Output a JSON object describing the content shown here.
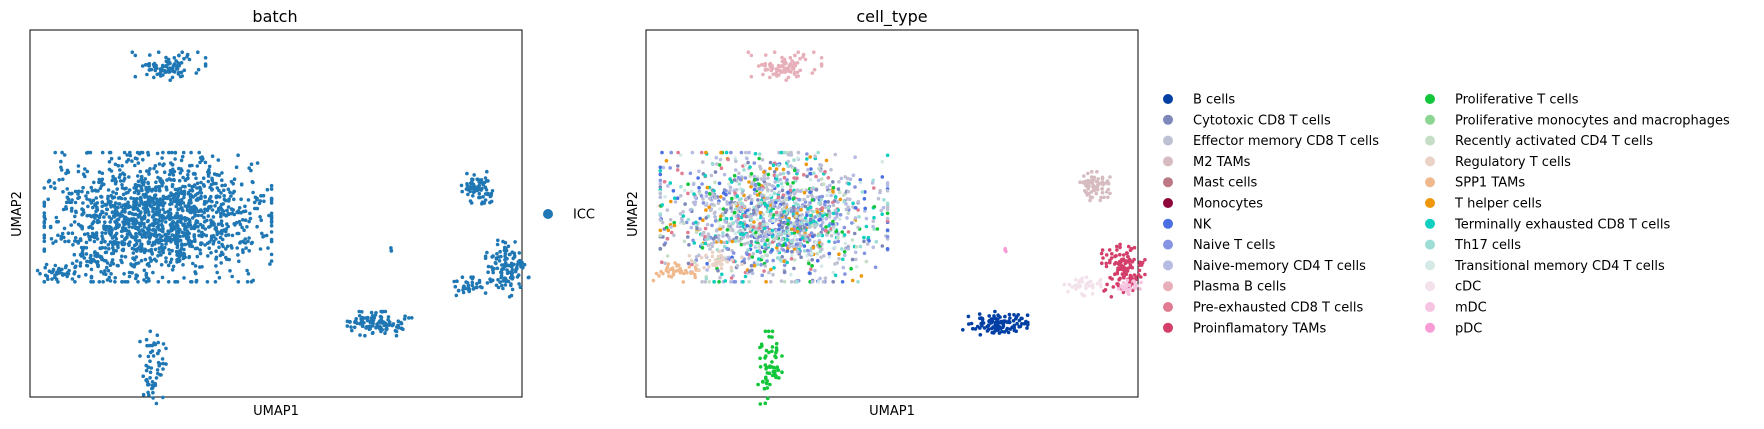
{
  "chart_data": [
    {
      "type": "scatter",
      "title": "batch",
      "xlabel": "UMAP1",
      "ylabel": "UMAP2",
      "ticks": false,
      "grid": false,
      "legend_position": "right",
      "categories": [
        {
          "name": "ICC",
          "color": "#1f77b4"
        }
      ],
      "clusters": [
        {
          "category": "ICC",
          "x": 2.3,
          "y": 9.0,
          "sx": 0.35,
          "sy": 0.18,
          "n": 90
        },
        {
          "category": "ICC",
          "x": 2.1,
          "y": 4.9,
          "sx": 1.05,
          "sy": 0.8,
          "n": 1500
        },
        {
          "category": "ICC",
          "x": 0.2,
          "y": 3.4,
          "sx": 0.25,
          "sy": 0.12,
          "n": 40
        },
        {
          "category": "ICC",
          "x": 0.9,
          "y": 3.7,
          "sx": 0.25,
          "sy": 0.12,
          "n": 35
        },
        {
          "category": "ICC",
          "x": 2.0,
          "y": 0.8,
          "sx": 0.12,
          "sy": 0.45,
          "n": 60
        },
        {
          "category": "ICC",
          "x": 6.6,
          "y": 2.0,
          "sx": 0.3,
          "sy": 0.15,
          "n": 110
        },
        {
          "category": "ICC",
          "x": 6.8,
          "y": 4.0,
          "sx": 0.03,
          "sy": 0.03,
          "n": 3
        },
        {
          "category": "ICC",
          "x": 8.6,
          "y": 5.7,
          "sx": 0.15,
          "sy": 0.2,
          "n": 70
        },
        {
          "category": "ICC",
          "x": 9.2,
          "y": 3.5,
          "sx": 0.2,
          "sy": 0.35,
          "n": 120
        },
        {
          "category": "ICC",
          "x": 8.4,
          "y": 3.0,
          "sx": 0.18,
          "sy": 0.12,
          "n": 35
        }
      ],
      "xlim": [
        -0.5,
        9.5
      ],
      "ylim": [
        0,
        10
      ]
    },
    {
      "type": "scatter",
      "title": "cell_type",
      "xlabel": "UMAP1",
      "ylabel": "UMAP2",
      "ticks": false,
      "grid": false,
      "legend_position": "right",
      "legend_columns": 2,
      "categories": [
        {
          "name": "B cells",
          "color": "#023fa5"
        },
        {
          "name": "Cytotoxic CD8 T cells",
          "color": "#7d87b9"
        },
        {
          "name": "Effector memory CD8 T cells",
          "color": "#bec1d4"
        },
        {
          "name": "M2 TAMs",
          "color": "#d6bcc0"
        },
        {
          "name": "Mast cells",
          "color": "#bb7784"
        },
        {
          "name": "Monocytes",
          "color": "#8e063b"
        },
        {
          "name": "NK",
          "color": "#4a6fe3"
        },
        {
          "name": "Naive T cells",
          "color": "#8595e1"
        },
        {
          "name": "Naive-memory CD4 T cells",
          "color": "#b5bbe3"
        },
        {
          "name": "Plasma B cells",
          "color": "#e6afb9"
        },
        {
          "name": "Pre-exhausted CD8 T cells",
          "color": "#e07b91"
        },
        {
          "name": "Proinflamatory TAMs",
          "color": "#d33f6a"
        },
        {
          "name": "Proliferative T cells",
          "color": "#11c638"
        },
        {
          "name": "Proliferative monocytes and macrophages",
          "color": "#8dd593"
        },
        {
          "name": "Recently activated CD4 T cells",
          "color": "#c6dec7"
        },
        {
          "name": "Regulatory T cells",
          "color": "#ead3c6"
        },
        {
          "name": "SPP1 TAMs",
          "color": "#f0b98d"
        },
        {
          "name": "T helper cells",
          "color": "#ef9708"
        },
        {
          "name": "Terminally exhausted CD8 T cells",
          "color": "#0fcfc0"
        },
        {
          "name": "Th17 cells",
          "color": "#9cded6"
        },
        {
          "name": "Transitional memory CD4 T cells",
          "color": "#d5eae7"
        },
        {
          "name": "cDC",
          "color": "#f3e1eb"
        },
        {
          "name": "mDC",
          "color": "#f6c4e1"
        },
        {
          "name": "pDC",
          "color": "#f79cd4"
        }
      ],
      "clusters": [
        {
          "category": "Plasma B cells",
          "x": 2.3,
          "y": 9.0,
          "sx": 0.35,
          "sy": 0.18,
          "n": 90
        },
        {
          "category": "mixed_t",
          "x": 2.1,
          "y": 4.9,
          "sx": 1.05,
          "sy": 0.8,
          "n": 1500
        },
        {
          "category": "SPP1 TAMs",
          "x": 0.2,
          "y": 3.4,
          "sx": 0.25,
          "sy": 0.12,
          "n": 40
        },
        {
          "category": "Regulatory T cells",
          "x": 0.9,
          "y": 3.7,
          "sx": 0.25,
          "sy": 0.12,
          "n": 35
        },
        {
          "category": "Proliferative T cells",
          "x": 2.0,
          "y": 0.8,
          "sx": 0.12,
          "sy": 0.45,
          "n": 60
        },
        {
          "category": "B cells",
          "x": 6.6,
          "y": 2.0,
          "sx": 0.3,
          "sy": 0.15,
          "n": 110
        },
        {
          "category": "pDC",
          "x": 6.8,
          "y": 4.0,
          "sx": 0.03,
          "sy": 0.03,
          "n": 3
        },
        {
          "category": "M2 TAMs",
          "x": 8.6,
          "y": 5.7,
          "sx": 0.15,
          "sy": 0.2,
          "n": 70
        },
        {
          "category": "Proinflamatory TAMs",
          "x": 9.2,
          "y": 3.5,
          "sx": 0.2,
          "sy": 0.35,
          "n": 120
        },
        {
          "category": "mDC",
          "x": 9.3,
          "y": 3.0,
          "sx": 0.12,
          "sy": 0.1,
          "n": 25
        },
        {
          "category": "cDC",
          "x": 8.4,
          "y": 3.0,
          "sx": 0.18,
          "sy": 0.12,
          "n": 35
        }
      ],
      "mixed_t_composition": [
        "Effector memory CD8 T cells",
        "Naive-memory CD4 T cells",
        "Cytotoxic CD8 T cells",
        "Naive T cells",
        "Terminally exhausted CD8 T cells",
        "Th17 cells",
        "Recently activated CD4 T cells",
        "Transitional memory CD4 T cells",
        "Proliferative T cells",
        "T helper cells",
        "NK",
        "Pre-exhausted CD8 T cells"
      ],
      "xlim": [
        -0.5,
        9.5
      ],
      "ylim": [
        0,
        10
      ]
    }
  ]
}
